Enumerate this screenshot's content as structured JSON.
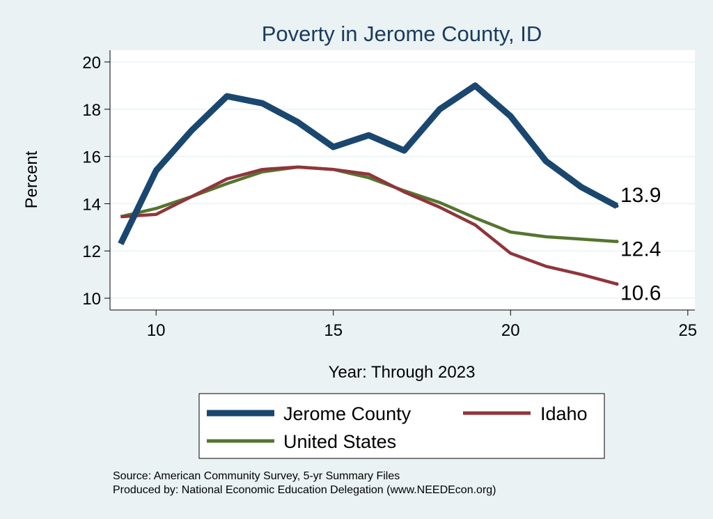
{
  "chart_data": {
    "type": "line",
    "title": "Poverty in Jerome County, ID",
    "xlabel": "Year: Through 2023",
    "ylabel": "Percent",
    "xlim": [
      8.7,
      25.2
    ],
    "ylim": [
      9.5,
      20.5
    ],
    "xticks": [
      10,
      15,
      20,
      25
    ],
    "yticks": [
      10,
      12,
      14,
      16,
      18,
      20
    ],
    "grid": true,
    "legend_position": "bottom",
    "x": [
      9,
      10,
      11,
      12,
      13,
      14,
      15,
      16,
      17,
      18,
      19,
      20,
      21,
      22,
      23
    ],
    "series": [
      {
        "name": "Jerome County",
        "color": "#1a476f",
        "values": [
          12.3,
          15.4,
          17.1,
          18.55,
          18.25,
          17.45,
          16.4,
          16.9,
          16.25,
          18.0,
          19.0,
          17.7,
          15.8,
          14.7,
          13.9
        ],
        "end_label": "13.9"
      },
      {
        "name": "Idaho",
        "color": "#90353b",
        "values": [
          13.45,
          13.55,
          14.3,
          15.05,
          15.45,
          15.55,
          15.45,
          15.25,
          14.5,
          13.85,
          13.1,
          11.9,
          11.35,
          11.0,
          10.6
        ],
        "end_label": "10.6"
      },
      {
        "name": "United States",
        "color": "#55752f",
        "values": [
          13.45,
          13.8,
          14.3,
          14.85,
          15.35,
          15.55,
          15.45,
          15.1,
          14.55,
          14.05,
          13.4,
          12.8,
          12.6,
          12.5,
          12.4
        ],
        "end_label": "12.4"
      }
    ],
    "notes": [
      "Source: American Community Survey, 5-yr Summary Files",
      "Produced by: National Economic Education Delegation (www.NEEDEcon.org)"
    ]
  }
}
